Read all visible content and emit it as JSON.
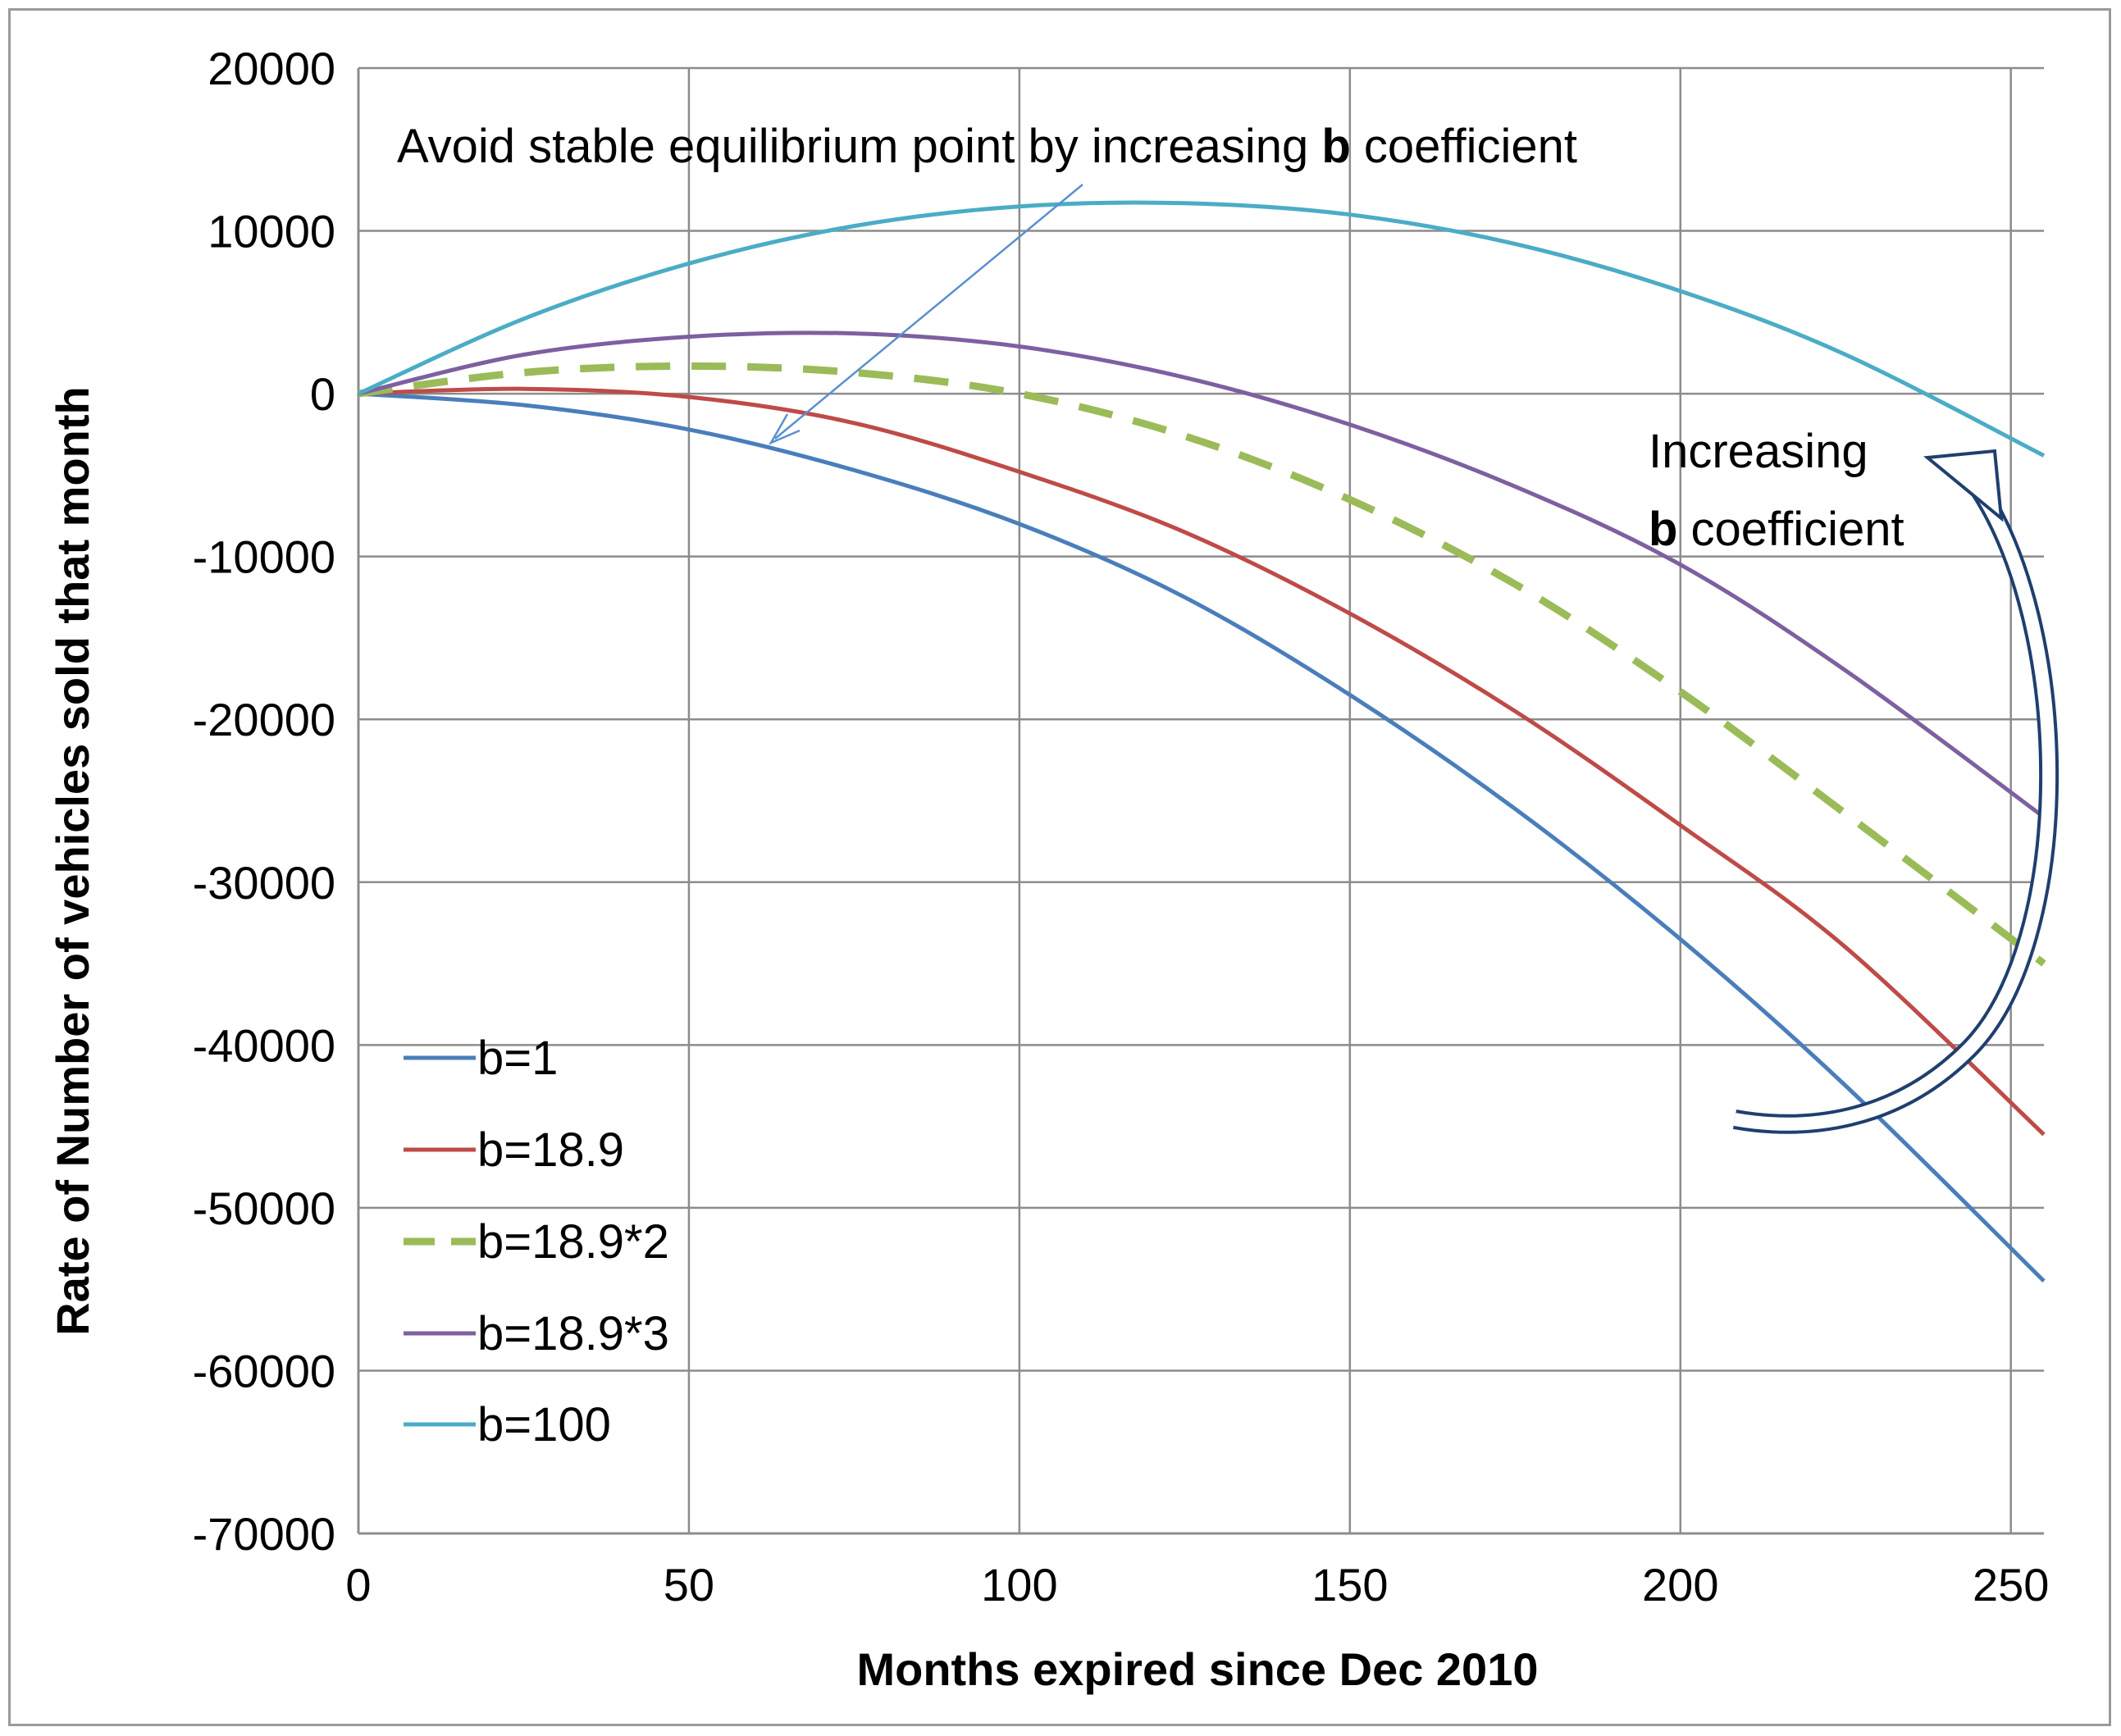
{
  "chart_data": {
    "type": "line",
    "title": "",
    "xlabel": "Months expired since Dec 2010",
    "ylabel": "Rate of Number of vehicles sold that month",
    "xlim": [
      0,
      255
    ],
    "ylim": [
      -70000,
      20000
    ],
    "xticks": [
      "0",
      "50",
      "100",
      "150",
      "200",
      "250"
    ],
    "yticks": [
      "20000",
      "10000",
      "0",
      "-10000",
      "-20000",
      "-30000",
      "-40000",
      "-50000",
      "-60000",
      "-70000"
    ],
    "grid": true,
    "legend_position": "bottom-left",
    "series": [
      {
        "name": "b=1",
        "color": "#4a7ebb",
        "dashed": false,
        "x": [
          0,
          25,
          50,
          75,
          100,
          125,
          150,
          175,
          200,
          225,
          255
        ],
        "y": [
          0,
          -700,
          -2200,
          -4700,
          -8000,
          -12500,
          -18500,
          -25500,
          -33500,
          -42500,
          -54500
        ]
      },
      {
        "name": "b=18.9",
        "color": "#be4b48",
        "dashed": false,
        "x": [
          0,
          25,
          50,
          75,
          100,
          125,
          150,
          175,
          200,
          225,
          255
        ],
        "y": [
          0,
          300,
          -200,
          -1800,
          -4800,
          -8500,
          -13500,
          -19500,
          -26500,
          -34000,
          -45500
        ]
      },
      {
        "name": "b=18.9*2",
        "color": "#9bbb59",
        "dashed": true,
        "x": [
          0,
          25,
          50,
          75,
          100,
          125,
          150,
          175,
          200,
          225,
          255
        ],
        "y": [
          0,
          1300,
          1700,
          1300,
          0,
          -2600,
          -6500,
          -11700,
          -18300,
          -25800,
          -35000
        ]
      },
      {
        "name": "b=18.9*3",
        "color": "#7d60a0",
        "dashed": false,
        "x": [
          0,
          25,
          50,
          75,
          100,
          125,
          150,
          175,
          200,
          225,
          255
        ],
        "y": [
          0,
          2400,
          3500,
          3700,
          2900,
          1000,
          -1900,
          -5700,
          -10500,
          -17000,
          -26000
        ]
      },
      {
        "name": "b=100",
        "color": "#4bacc6",
        "dashed": false,
        "x": [
          0,
          25,
          50,
          75,
          100,
          125,
          150,
          175,
          200,
          225,
          255
        ],
        "y": [
          0,
          4600,
          8000,
          10300,
          11500,
          11700,
          11000,
          9200,
          6300,
          2400,
          -3800
        ]
      }
    ],
    "annotations": {
      "top_text_pre": "Avoid stable equilibrium point by increasing ",
      "top_text_bold": "b",
      "top_text_post": " coefficient",
      "right_line1": "Increasing",
      "right_bold": "b",
      "right_line2_post": " coefficient"
    }
  }
}
